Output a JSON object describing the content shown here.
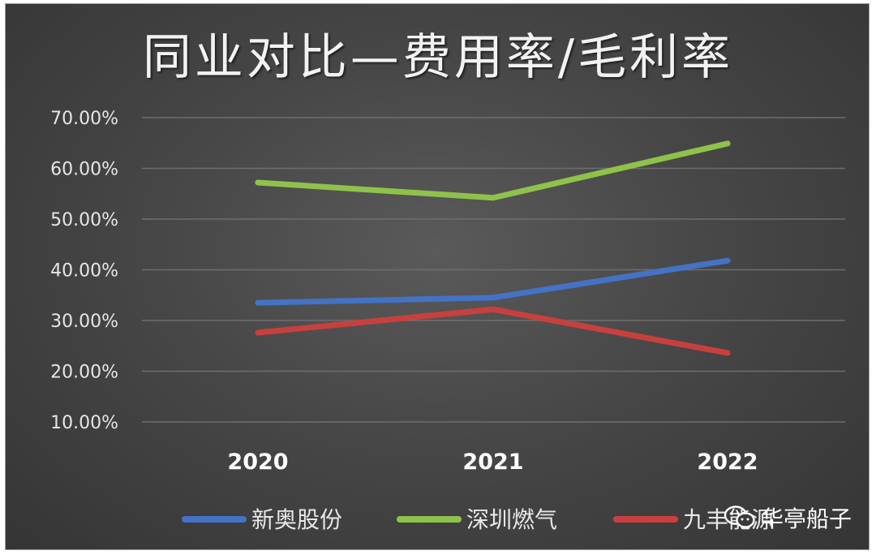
{
  "chart_data": {
    "type": "line",
    "title": "同业对比—费用率/毛利率",
    "categories": [
      "2020",
      "2021",
      "2022"
    ],
    "y_ticks": [
      "70.00%",
      "60.00%",
      "50.00%",
      "40.00%",
      "30.00%",
      "20.00%",
      "10.00%"
    ],
    "ylim": [
      10,
      70
    ],
    "grid": true,
    "legend_position": "bottom",
    "series": [
      {
        "name": "新奥股份",
        "color": "#4472c4",
        "values": [
          33.5,
          34.5,
          41.8
        ]
      },
      {
        "name": "深圳燃气",
        "color": "#8fc24a",
        "values": [
          57.2,
          54.2,
          64.9
        ]
      },
      {
        "name": "九丰能源",
        "color": "#c8403e",
        "values": [
          27.6,
          32.2,
          23.6
        ]
      }
    ]
  },
  "watermark": {
    "text": "华亭船子",
    "icon": "wechat-icon"
  }
}
